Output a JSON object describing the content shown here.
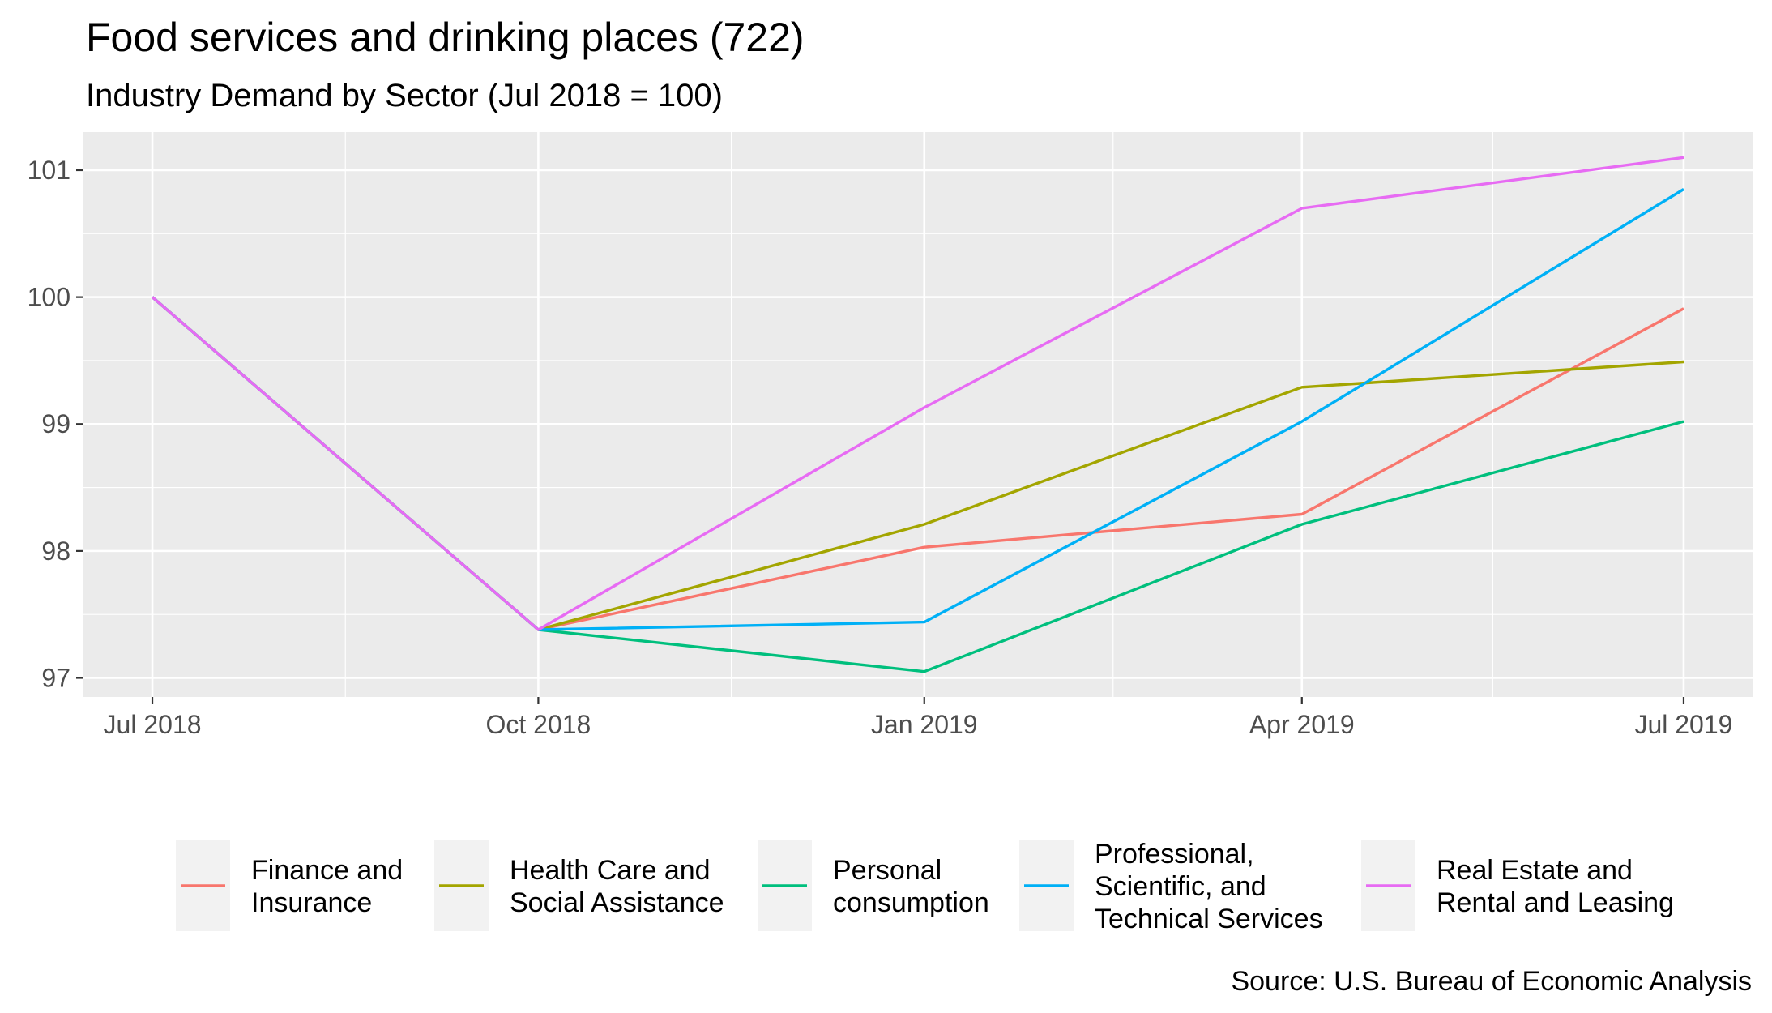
{
  "chart_data": {
    "type": "line",
    "title": "Food services and drinking places (722)",
    "subtitle": "Industry Demand by Sector (Jul 2018 = 100)",
    "caption": "Source: U.S. Bureau of Economic Analysis",
    "xlabel": "",
    "ylabel": "",
    "x": [
      "2018-07-01",
      "2018-10-01",
      "2019-01-01",
      "2019-04-01",
      "2019-07-01"
    ],
    "x_tick_labels": [
      "Jul 2018",
      "Oct 2018",
      "Jan 2019",
      "Apr 2019",
      "Jul 2019"
    ],
    "y_ticks": [
      97,
      98,
      99,
      100,
      101
    ],
    "ylim": [
      96.85,
      101.3
    ],
    "grid": true,
    "legend_position": "bottom",
    "series": [
      {
        "name": "Finance and\nInsurance",
        "color": "#F8766D",
        "values": [
          100,
          97.38,
          98.03,
          98.29,
          99.91
        ]
      },
      {
        "name": "Health Care and\nSocial Assistance",
        "color": "#A3A500",
        "values": [
          100,
          97.38,
          98.21,
          99.29,
          99.49
        ]
      },
      {
        "name": "Personal\nconsumption",
        "color": "#00BF7D",
        "values": [
          100,
          97.38,
          97.05,
          98.21,
          99.02
        ]
      },
      {
        "name": "Professional,\nScientific, and\nTechnical Services",
        "color": "#00B0F6",
        "values": [
          100,
          97.38,
          97.44,
          99.02,
          100.85
        ]
      },
      {
        "name": "Real Estate and\nRental and Leasing",
        "color": "#E76BF3",
        "values": [
          100,
          97.38,
          99.13,
          100.7,
          101.1
        ]
      }
    ]
  }
}
